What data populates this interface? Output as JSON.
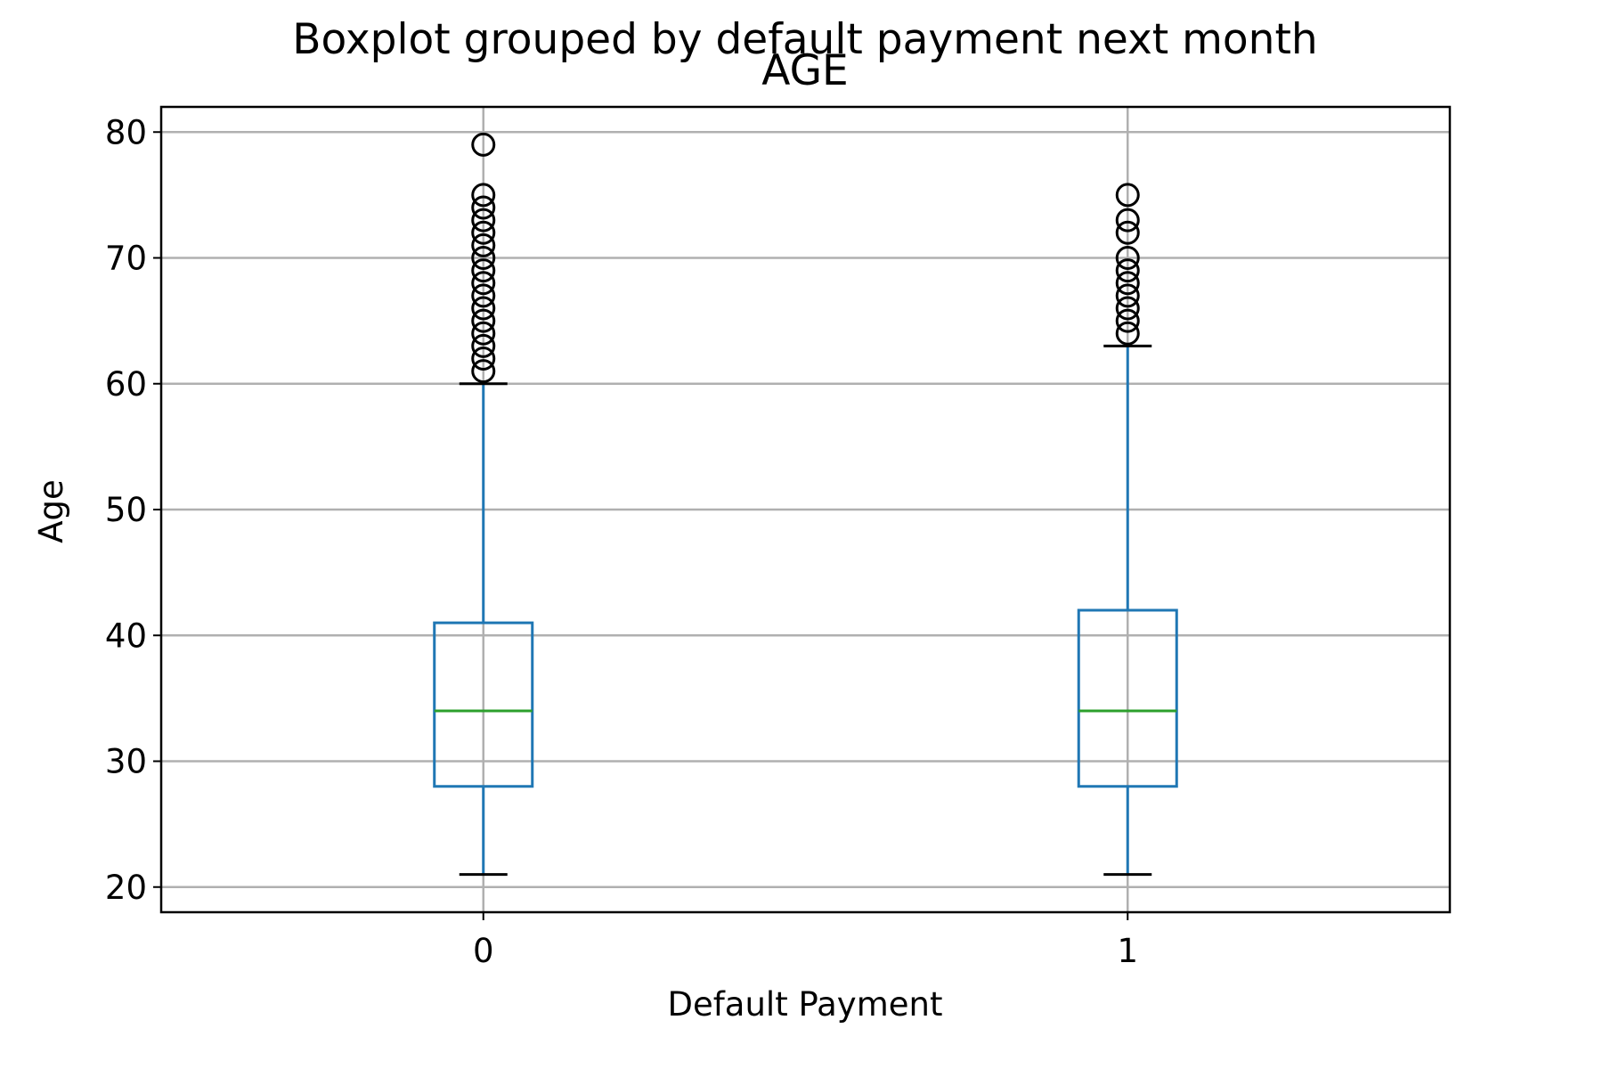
{
  "chart_data": {
    "type": "boxplot",
    "suptitle": "Boxplot grouped by default payment next month",
    "title": "AGE",
    "xlabel": "Default Payment",
    "ylabel": "Age",
    "ylim": [
      18,
      82
    ],
    "yticks": [
      20,
      30,
      40,
      50,
      60,
      70,
      80
    ],
    "grid": true,
    "categories": [
      "0",
      "1"
    ],
    "boxes": [
      {
        "category": "0",
        "whisker_low": 21,
        "q1": 28,
        "median": 34,
        "q3": 41,
        "whisker_high": 60,
        "fliers": [
          61,
          62,
          63,
          64,
          65,
          66,
          67,
          68,
          69,
          70,
          71,
          72,
          73,
          74,
          75,
          79
        ]
      },
      {
        "category": "1",
        "whisker_low": 21,
        "q1": 28,
        "median": 34,
        "q3": 42,
        "whisker_high": 63,
        "fliers": [
          64,
          65,
          66,
          67,
          68,
          69,
          70,
          72,
          73,
          75
        ]
      }
    ],
    "colors": {
      "box": "#1f77b4",
      "median": "#2ca02c",
      "whisker_cap": "#000000",
      "flier": "#000000",
      "grid": "#b0b0b0"
    }
  }
}
